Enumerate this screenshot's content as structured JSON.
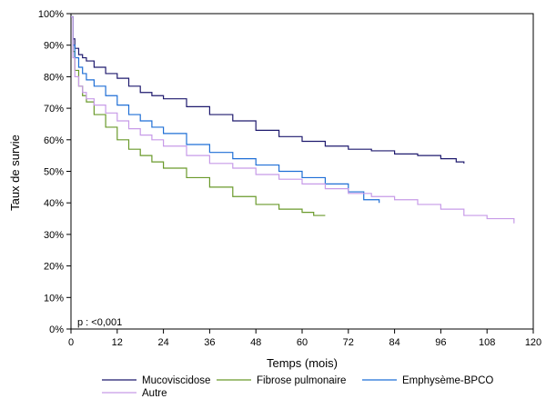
{
  "chart_data": {
    "type": "line",
    "title": "",
    "xlabel": "Temps (mois)",
    "ylabel": "Taux de survie",
    "xlim": [
      0,
      120
    ],
    "ylim": [
      0,
      100
    ],
    "x_ticks": [
      "0",
      "12",
      "24",
      "36",
      "48",
      "60",
      "72",
      "84",
      "96",
      "108",
      "120"
    ],
    "y_ticks": [
      "0%",
      "10%",
      "20%",
      "30%",
      "40%",
      "50%",
      "60%",
      "70%",
      "80%",
      "90%",
      "100%"
    ],
    "grid": false,
    "legend_position": "bottom",
    "annotation": "p : <0,001",
    "series": [
      {
        "name": "Mucoviscidose",
        "color": "#1f1a6e",
        "x": [
          0,
          0.5,
          1,
          2,
          3,
          4,
          6,
          9,
          12,
          15,
          18,
          21,
          24,
          30,
          36,
          42,
          48,
          54,
          60,
          66,
          72,
          78,
          84,
          90,
          96,
          100,
          102
        ],
        "y": [
          99,
          92,
          89,
          87,
          86,
          85,
          83,
          81,
          79.5,
          77,
          75,
          74,
          73,
          70.5,
          68,
          66,
          63,
          61,
          59.5,
          58,
          57,
          56.5,
          55.5,
          55,
          54,
          53,
          52.5
        ]
      },
      {
        "name": "Fibrose pulmonaire",
        "color": "#6a9a2b",
        "x": [
          0,
          0.5,
          1,
          2,
          3,
          4,
          6,
          9,
          12,
          15,
          18,
          21,
          24,
          30,
          36,
          42,
          48,
          54,
          60,
          63,
          66
        ],
        "y": [
          99,
          88,
          82,
          77,
          74,
          72,
          68,
          64,
          60,
          57,
          55,
          53,
          51,
          48,
          45,
          42,
          39.5,
          38,
          37,
          36,
          36
        ]
      },
      {
        "name": "Emphysème-BPCO",
        "color": "#1f6fd6",
        "x": [
          0,
          0.5,
          1,
          2,
          3,
          4,
          6,
          9,
          12,
          15,
          18,
          21,
          24,
          30,
          36,
          42,
          48,
          54,
          60,
          66,
          72,
          76,
          80
        ],
        "y": [
          99,
          90,
          86,
          83,
          81,
          79,
          77,
          74,
          71,
          68,
          66,
          64,
          62,
          58.5,
          56,
          54,
          52,
          50,
          48,
          46,
          43.5,
          41,
          40
        ]
      },
      {
        "name": "Autre",
        "color": "#c79be8",
        "x": [
          0,
          0.5,
          1,
          2,
          3,
          4,
          6,
          9,
          12,
          15,
          18,
          21,
          24,
          30,
          36,
          42,
          48,
          54,
          60,
          66,
          72,
          78,
          84,
          90,
          96,
          102,
          108,
          115
        ],
        "y": [
          99,
          86,
          80,
          77,
          75,
          73,
          71,
          68.5,
          66,
          63.5,
          61.5,
          60,
          58,
          55,
          52.5,
          51,
          49,
          47.5,
          46,
          44.5,
          43,
          42,
          41,
          39.5,
          38,
          36,
          35,
          33.5
        ]
      }
    ]
  }
}
